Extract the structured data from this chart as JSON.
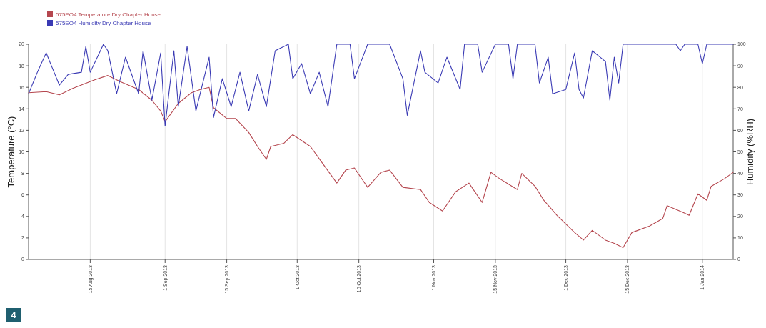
{
  "chart_data": {
    "type": "line",
    "ylabel": "Temperature (°C)",
    "y2label": "Humidity (%RH)",
    "xlim": [
      "2013-08-01",
      "2014-01-08"
    ],
    "xticks": [
      {
        "value": "2013-08-15",
        "label": "15 Aug 2013"
      },
      {
        "value": "2013-09-01",
        "label": "1 Sep 2013"
      },
      {
        "value": "2013-09-15",
        "label": "15 Sep 2013"
      },
      {
        "value": "2013-10-01",
        "label": "1 Oct 2013"
      },
      {
        "value": "2013-10-15",
        "label": "15 Oct 2013"
      },
      {
        "value": "2013-11-01",
        "label": "1 Nov 2013"
      },
      {
        "value": "2013-11-15",
        "label": "15 Nov 2013"
      },
      {
        "value": "2013-12-01",
        "label": "1 Dec 2013"
      },
      {
        "value": "2013-12-15",
        "label": "15 Dec 2013"
      },
      {
        "value": "2014-01-01",
        "label": "1 Jan 2014"
      }
    ],
    "ylim": [
      0,
      20
    ],
    "yticks": [
      0,
      2,
      4,
      6,
      8,
      10,
      12,
      14,
      16,
      18,
      20
    ],
    "y2lim": [
      0,
      100
    ],
    "y2ticks": [
      0,
      10,
      20,
      30,
      40,
      50,
      60,
      70,
      80,
      90,
      100
    ],
    "grid": "x",
    "legend": "top left",
    "marker": "none",
    "line_style": "solid",
    "annotations": [
      "4"
    ],
    "series": [
      {
        "name": "575EO4 Temperature Dry Chapter House",
        "color": "#b5474f",
        "x": [
          "2013-08-01",
          "2013-08-05",
          "2013-08-08",
          "2013-08-11",
          "2013-08-16",
          "2013-08-19",
          "2013-08-22",
          "2013-08-26",
          "2013-08-29",
          "2013-08-31",
          "2013-09-01",
          "2013-09-04",
          "2013-09-07",
          "2013-09-09",
          "2013-09-11",
          "2013-09-12",
          "2013-09-15",
          "2013-09-17",
          "2013-09-20",
          "2013-09-22",
          "2013-09-24",
          "2013-09-25",
          "2013-09-28",
          "2013-09-30",
          "2013-10-04",
          "2013-10-07",
          "2013-10-10",
          "2013-10-12",
          "2013-10-14",
          "2013-10-17",
          "2013-10-20",
          "2013-10-22",
          "2013-10-25",
          "2013-10-29",
          "2013-10-31",
          "2013-11-03",
          "2013-11-06",
          "2013-11-09",
          "2013-11-12",
          "2013-11-14",
          "2013-11-16",
          "2013-11-20",
          "2013-11-21",
          "2013-11-24",
          "2013-11-26",
          "2013-11-29",
          "2013-12-03",
          "2013-12-05",
          "2013-12-07",
          "2013-12-10",
          "2013-12-12",
          "2013-12-14",
          "2013-12-16",
          "2013-12-20",
          "2013-12-23",
          "2013-12-24",
          "2013-12-28",
          "2013-12-29",
          "2013-12-31",
          "2014-01-02",
          "2014-01-03",
          "2014-01-06",
          "2014-01-08"
        ],
        "values": [
          15.5,
          15.6,
          15.3,
          15.9,
          16.7,
          17.1,
          16.5,
          15.8,
          14.8,
          13.8,
          12.8,
          14.5,
          15.5,
          15.8,
          16.0,
          14.1,
          13.1,
          13.1,
          11.8,
          10.5,
          9.3,
          10.5,
          10.8,
          11.6,
          10.5,
          8.8,
          7.1,
          8.3,
          8.5,
          6.7,
          8.1,
          8.3,
          6.7,
          6.5,
          5.3,
          4.5,
          6.3,
          7.1,
          5.3,
          8.1,
          7.5,
          6.5,
          8.0,
          6.8,
          5.5,
          4.1,
          2.5,
          1.8,
          2.7,
          1.8,
          1.5,
          1.1,
          2.5,
          3.1,
          3.8,
          5.0,
          4.3,
          4.1,
          6.1,
          5.5,
          6.8,
          7.5,
          8.1
        ]
      },
      {
        "name": "575EO4 Humidity Dry Chapter House",
        "color": "#3a3ab4",
        "axis": "y2",
        "x": [
          "2013-08-01",
          "2013-08-03",
          "2013-08-05",
          "2013-08-06",
          "2013-08-08",
          "2013-08-10",
          "2013-08-13",
          "2013-08-14",
          "2013-08-15",
          "2013-08-18",
          "2013-08-19",
          "2013-08-21",
          "2013-08-23",
          "2013-08-26",
          "2013-08-27",
          "2013-08-29",
          "2013-08-31",
          "2013-09-01",
          "2013-09-03",
          "2013-09-04",
          "2013-09-06",
          "2013-09-08",
          "2013-09-11",
          "2013-09-12",
          "2013-09-14",
          "2013-09-16",
          "2013-09-18",
          "2013-09-20",
          "2013-09-22",
          "2013-09-24",
          "2013-09-26",
          "2013-09-29",
          "2013-09-30",
          "2013-10-02",
          "2013-10-04",
          "2013-10-06",
          "2013-10-08",
          "2013-10-10",
          "2013-10-13",
          "2013-10-14",
          "2013-10-17",
          "2013-10-22",
          "2013-10-25",
          "2013-10-26",
          "2013-10-29",
          "2013-10-30",
          "2013-11-02",
          "2013-11-04",
          "2013-11-07",
          "2013-11-08",
          "2013-11-11",
          "2013-11-12",
          "2013-11-15",
          "2013-11-18",
          "2013-11-19",
          "2013-11-20",
          "2013-11-24",
          "2013-11-25",
          "2013-11-27",
          "2013-11-28",
          "2013-12-01",
          "2013-12-03",
          "2013-12-04",
          "2013-12-05",
          "2013-12-07",
          "2013-12-10",
          "2013-12-11",
          "2013-12-12",
          "2013-12-13",
          "2013-12-14",
          "2013-12-26",
          "2013-12-27",
          "2013-12-28",
          "2013-12-31",
          "2014-01-01",
          "2014-01-02",
          "2014-01-08"
        ],
        "values": [
          77,
          87,
          96,
          91,
          81,
          86,
          87,
          99,
          87,
          100,
          97,
          77,
          94,
          77,
          97,
          74,
          96,
          62,
          97,
          71,
          99,
          69,
          94,
          66,
          84,
          71,
          87,
          69,
          86,
          71,
          97,
          100,
          84,
          91,
          77,
          87,
          71,
          100,
          100,
          84,
          100,
          100,
          84,
          67,
          97,
          87,
          82,
          94,
          79,
          100,
          100,
          87,
          100,
          100,
          84,
          100,
          100,
          82,
          94,
          77,
          79,
          96,
          79,
          75,
          97,
          92,
          74,
          94,
          82,
          100,
          100,
          97,
          100,
          100,
          91,
          100,
          100
        ]
      }
    ]
  }
}
